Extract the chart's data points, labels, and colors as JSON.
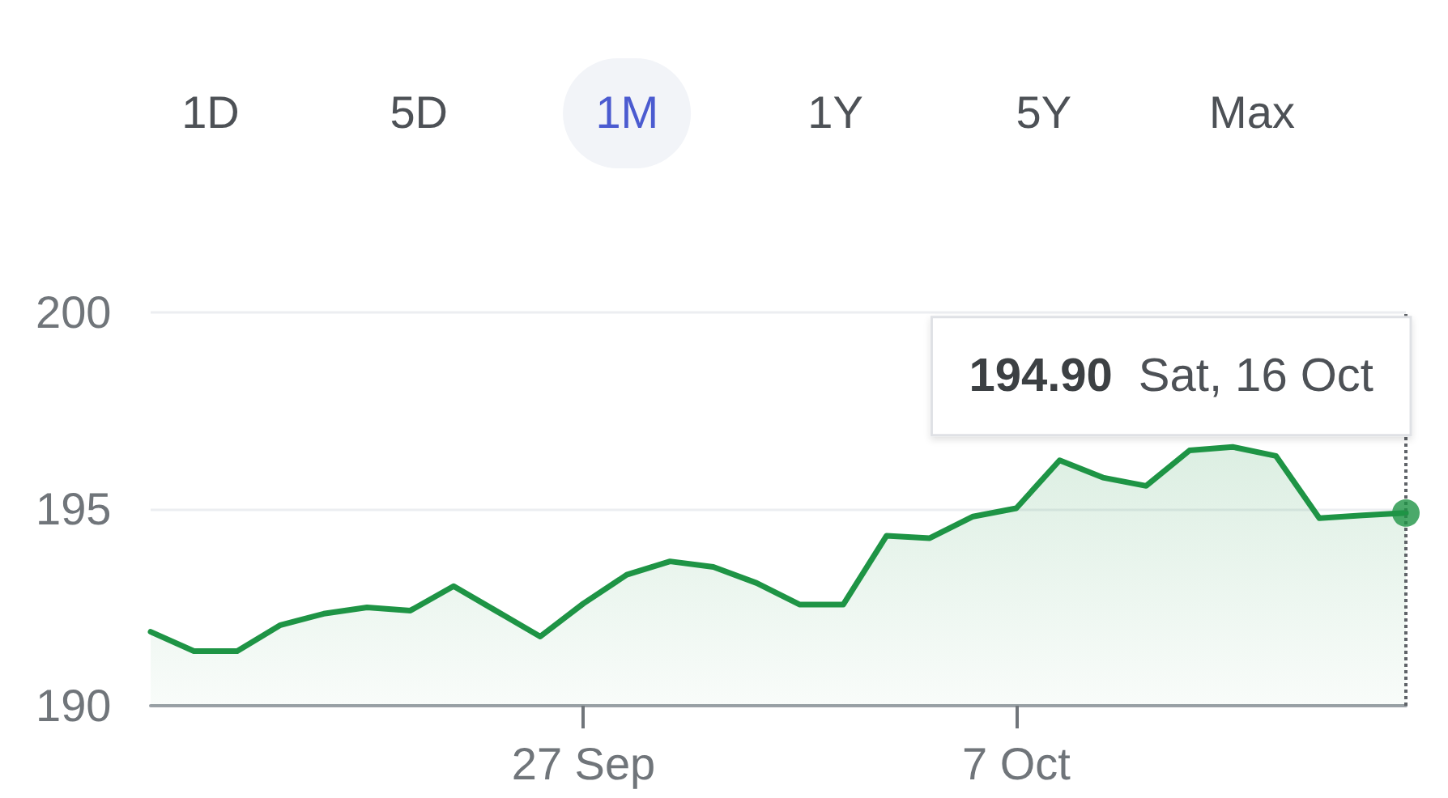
{
  "chart_data": {
    "type": "area",
    "x": [
      "--09-17",
      "--09-18",
      "--09-19",
      "--09-20",
      "--09-21",
      "--09-22",
      "--09-23",
      "--09-24",
      "--09-25",
      "--09-26",
      "--09-27",
      "--09-28",
      "--09-29",
      "--09-30",
      "--10-01",
      "--10-02",
      "--10-03",
      "--10-04",
      "--10-05",
      "--10-06",
      "--10-07",
      "--10-08",
      "--10-09",
      "--10-10",
      "--10-11",
      "--10-12",
      "--10-13",
      "--10-14",
      "--10-15",
      "--10-16"
    ],
    "series": [
      {
        "color": "#1e9445",
        "values": [
          191.88,
          191.39,
          191.39,
          192.05,
          192.34,
          192.5,
          192.42,
          193.04,
          192.4,
          191.76,
          192.6,
          193.33,
          193.67,
          193.53,
          193.12,
          192.57,
          192.57,
          194.32,
          194.26,
          194.81,
          195.02,
          196.24,
          195.8,
          195.59,
          196.49,
          196.58,
          196.35,
          194.77,
          194.84,
          194.9
        ]
      },
      {
        "type": "scatter",
        "x": [
          "--10-16"
        ],
        "values": [
          194.9
        ],
        "color": "#1e9445",
        "marker": "circle"
      }
    ],
    "xlim": [
      "--09-17",
      "--10-16"
    ],
    "xticks": [
      {
        "value": "--09-27",
        "label": "27 Sep"
      },
      {
        "value": "--10-07",
        "label": "7 Oct"
      }
    ],
    "ylim": [
      190,
      200
    ],
    "yticks": [
      190,
      195,
      200
    ],
    "grid": "y",
    "marker": "none",
    "line_style": "solid",
    "ref_lines": [
      {
        "axis": "x",
        "value": "--10-16",
        "line_style": "dotted",
        "color": "#5f6368"
      }
    ],
    "annotations": [
      "1D",
      "5D",
      "1M",
      "1Y",
      "5Y",
      "Max",
      {
        "text": "194.90 Sat, 16 Oct",
        "x": "--10-16",
        "y": 194.9
      }
    ]
  }
}
